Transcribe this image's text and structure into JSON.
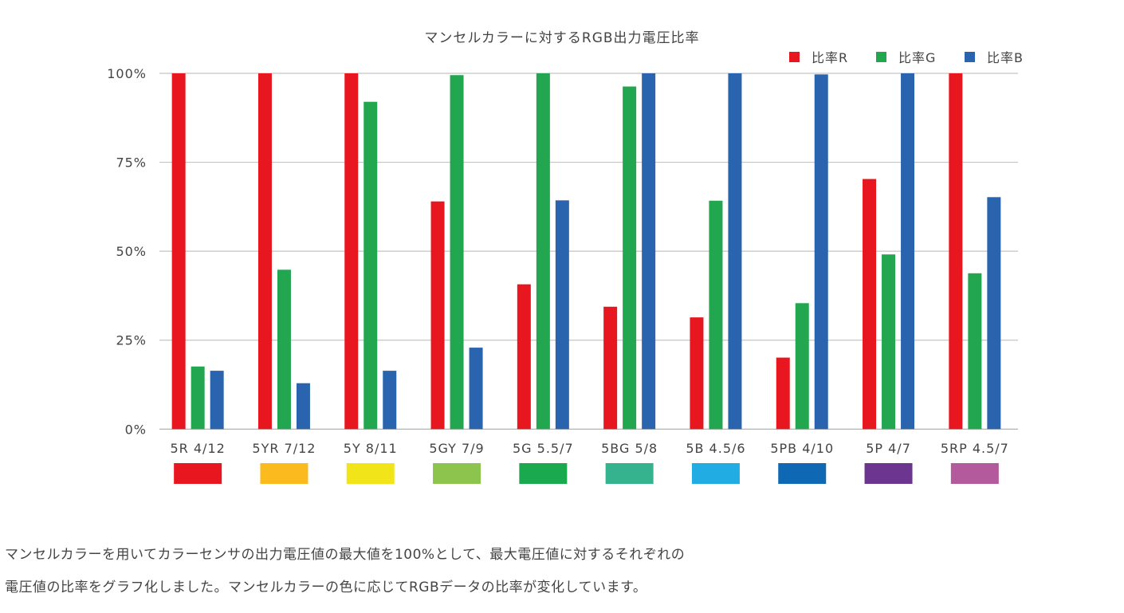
{
  "chart_data": {
    "type": "bar",
    "title": "マンセルカラーに対するRGB出力電圧比率",
    "categories": [
      "5R 4/12",
      "5YR 7/12",
      "5Y 8/11",
      "5GY 7/9",
      "5G 5.5/7",
      "5BG 5/8",
      "5B 4.5/6",
      "5PB 4/10",
      "5P 4/7",
      "5RP 4.5/7"
    ],
    "category_swatch_colors": [
      "#e8171f",
      "#fbbb1e",
      "#f1e51a",
      "#8cc44e",
      "#1aa94f",
      "#35b38f",
      "#22ace4",
      "#0f68b4",
      "#6b3590",
      "#b25a9c"
    ],
    "series": [
      {
        "name": "比率R",
        "color": "#e8171f",
        "values": [
          100,
          100,
          100,
          64.0,
          40.7,
          34.4,
          31.4,
          20.1,
          70.3,
          100
        ]
      },
      {
        "name": "比率G",
        "color": "#22a64f",
        "values": [
          17.6,
          44.8,
          92.0,
          99.5,
          100,
          96.3,
          64.2,
          35.4,
          49.1,
          43.8
        ]
      },
      {
        "name": "比率B",
        "color": "#2b64ae",
        "values": [
          16.4,
          12.9,
          16.4,
          22.9,
          64.3,
          100,
          100,
          99.7,
          100,
          65.2
        ]
      }
    ],
    "yticks": [
      "0%",
      "25%",
      "50%",
      "75%",
      "100%"
    ],
    "ylim": [
      0,
      100
    ],
    "xlabel": "",
    "ylabel": "",
    "grid": true,
    "legend": "top-right"
  },
  "caption": {
    "line1": "マンセルカラーを用いてカラーセンサの出力電圧値の最大値を100%として、最大電圧値に対するそれぞれの",
    "line2": "電圧値の比率をグラフ化しました。マンセルカラーの色に応じてRGBデータの比率が変化しています。"
  }
}
